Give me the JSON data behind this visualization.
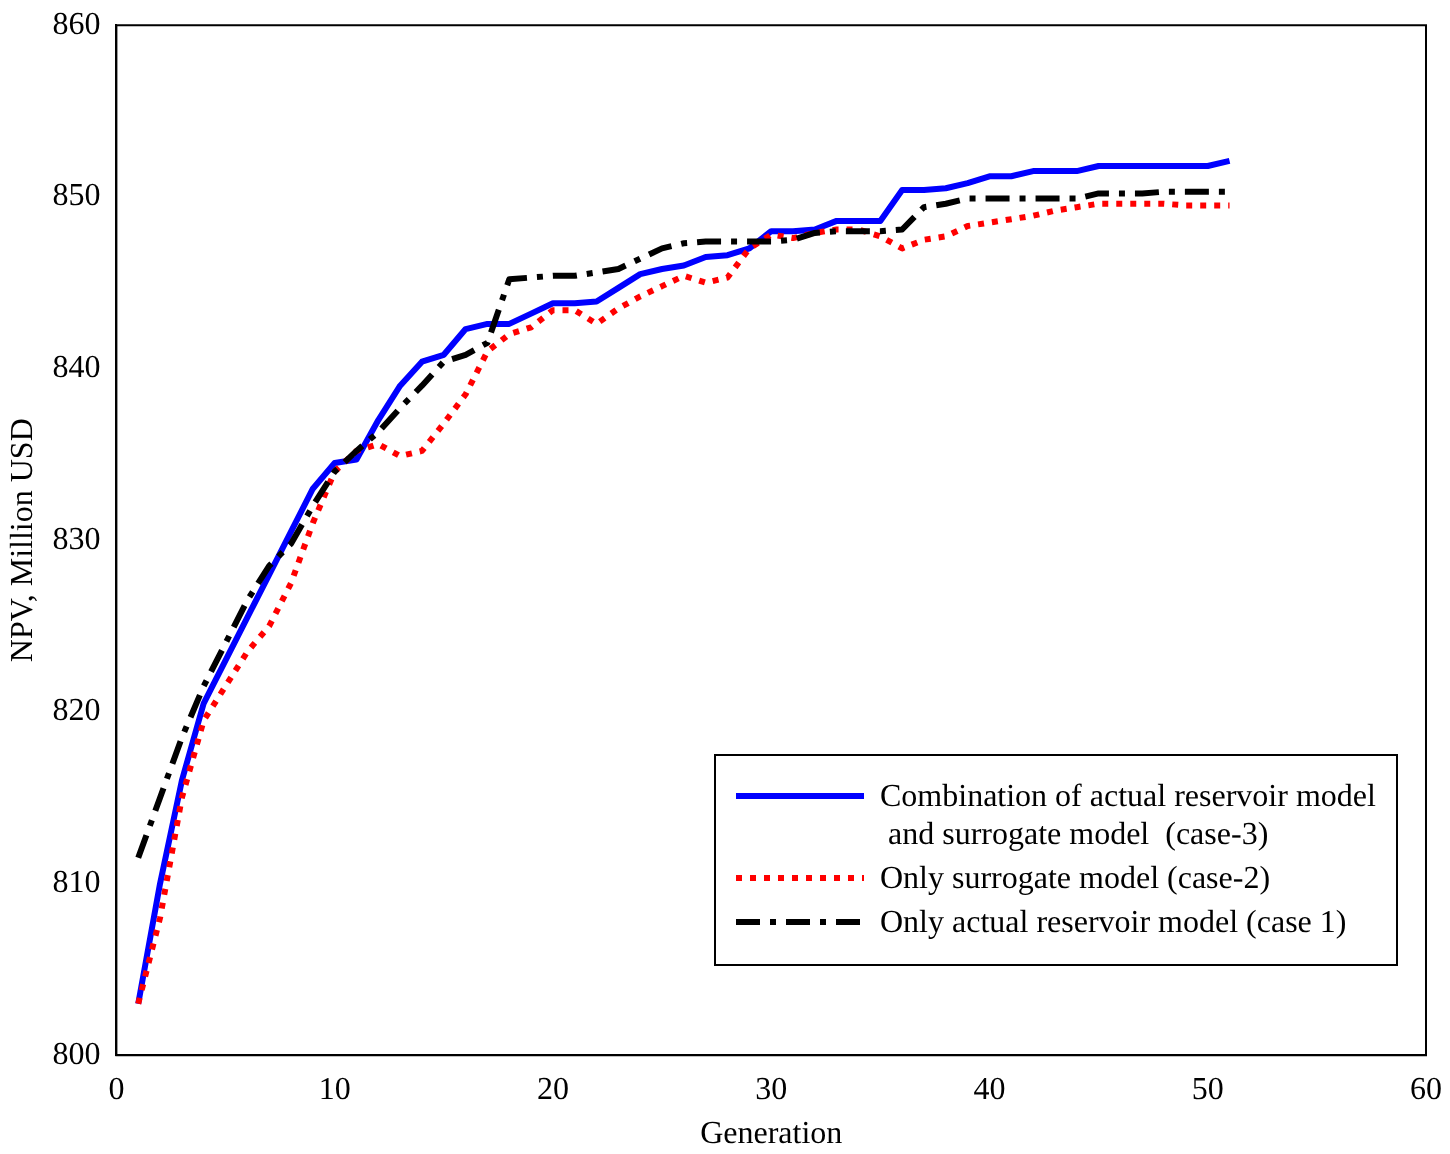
{
  "chart_data": {
    "type": "line",
    "xlabel": "Generation",
    "ylabel": "NPV, Million USD",
    "x": [
      1,
      2,
      3,
      4,
      5,
      6,
      7,
      8,
      9,
      10,
      11,
      12,
      13,
      14,
      15,
      16,
      17,
      18,
      19,
      20,
      21,
      22,
      23,
      24,
      25,
      26,
      27,
      28,
      29,
      30,
      31,
      32,
      33,
      34,
      35,
      36,
      37,
      38,
      39,
      40,
      41,
      42,
      43,
      44,
      45,
      46,
      47,
      48,
      49,
      50,
      51
    ],
    "xlim": [
      0,
      60
    ],
    "xticks": [
      0,
      10,
      20,
      30,
      40,
      50,
      60
    ],
    "ylim": [
      800,
      860
    ],
    "yticks": [
      800,
      810,
      820,
      830,
      840,
      850,
      860
    ],
    "grid": false,
    "legend": "bottom right",
    "marker": "none",
    "series": [
      {
        "name": "Combination of actual reservoir model\n and surrogate model  (case-3)",
        "color": "#0000ff",
        "line_style": "solid",
        "values": [
          803,
          810,
          816,
          820.5,
          823,
          825.5,
          828,
          830.5,
          833,
          834.5,
          834.7,
          837,
          839,
          840.4,
          840.8,
          842.3,
          842.6,
          842.6,
          843.2,
          843.8,
          843.8,
          843.9,
          844.7,
          845.5,
          845.8,
          846,
          846.5,
          846.6,
          847,
          848,
          848,
          848.1,
          848.6,
          848.6,
          848.6,
          850.4,
          850.4,
          850.5,
          850.8,
          851.2,
          851.2,
          851.5,
          851.5,
          851.5,
          851.8,
          851.8,
          851.8,
          851.8,
          851.8,
          851.8,
          852.1
        ]
      },
      {
        "name": "Only surrogate model (case-2)",
        "color": "#ff0000",
        "line_style": "dotted",
        "values": [
          803,
          808,
          815,
          819.5,
          821.5,
          823.5,
          825,
          827.5,
          831,
          834,
          835.2,
          835.6,
          834.9,
          835.2,
          836.8,
          838.5,
          841,
          842,
          842.4,
          843.4,
          843.4,
          842.6,
          843.5,
          844.2,
          844.8,
          845.4,
          845,
          845.3,
          847,
          847.8,
          847.6,
          847.9,
          848.1,
          848.1,
          847.7,
          847,
          847.5,
          847.7,
          848.3,
          848.5,
          848.7,
          848.9,
          849.2,
          849.4,
          849.6,
          849.6,
          849.6,
          849.6,
          849.5,
          849.5,
          849.5
        ]
      },
      {
        "name": "Only actual reservoir model (case 1)",
        "color": "#000000",
        "line_style": "dashdot",
        "values": [
          811.5,
          815,
          818.5,
          821.5,
          824,
          826.5,
          828.5,
          829.8,
          832,
          834,
          835.2,
          836.3,
          837.7,
          839,
          840.4,
          840.8,
          841.5,
          845.2,
          845.3,
          845.4,
          845.4,
          845.6,
          845.8,
          846.4,
          847,
          847.3,
          847.4,
          847.4,
          847.4,
          847.4,
          847.5,
          847.9,
          848,
          848,
          848,
          848.1,
          849.4,
          849.6,
          849.9,
          849.9,
          849.9,
          849.9,
          849.9,
          849.9,
          850.2,
          850.2,
          850.2,
          850.3,
          850.3,
          850.3,
          850.3
        ]
      }
    ]
  }
}
